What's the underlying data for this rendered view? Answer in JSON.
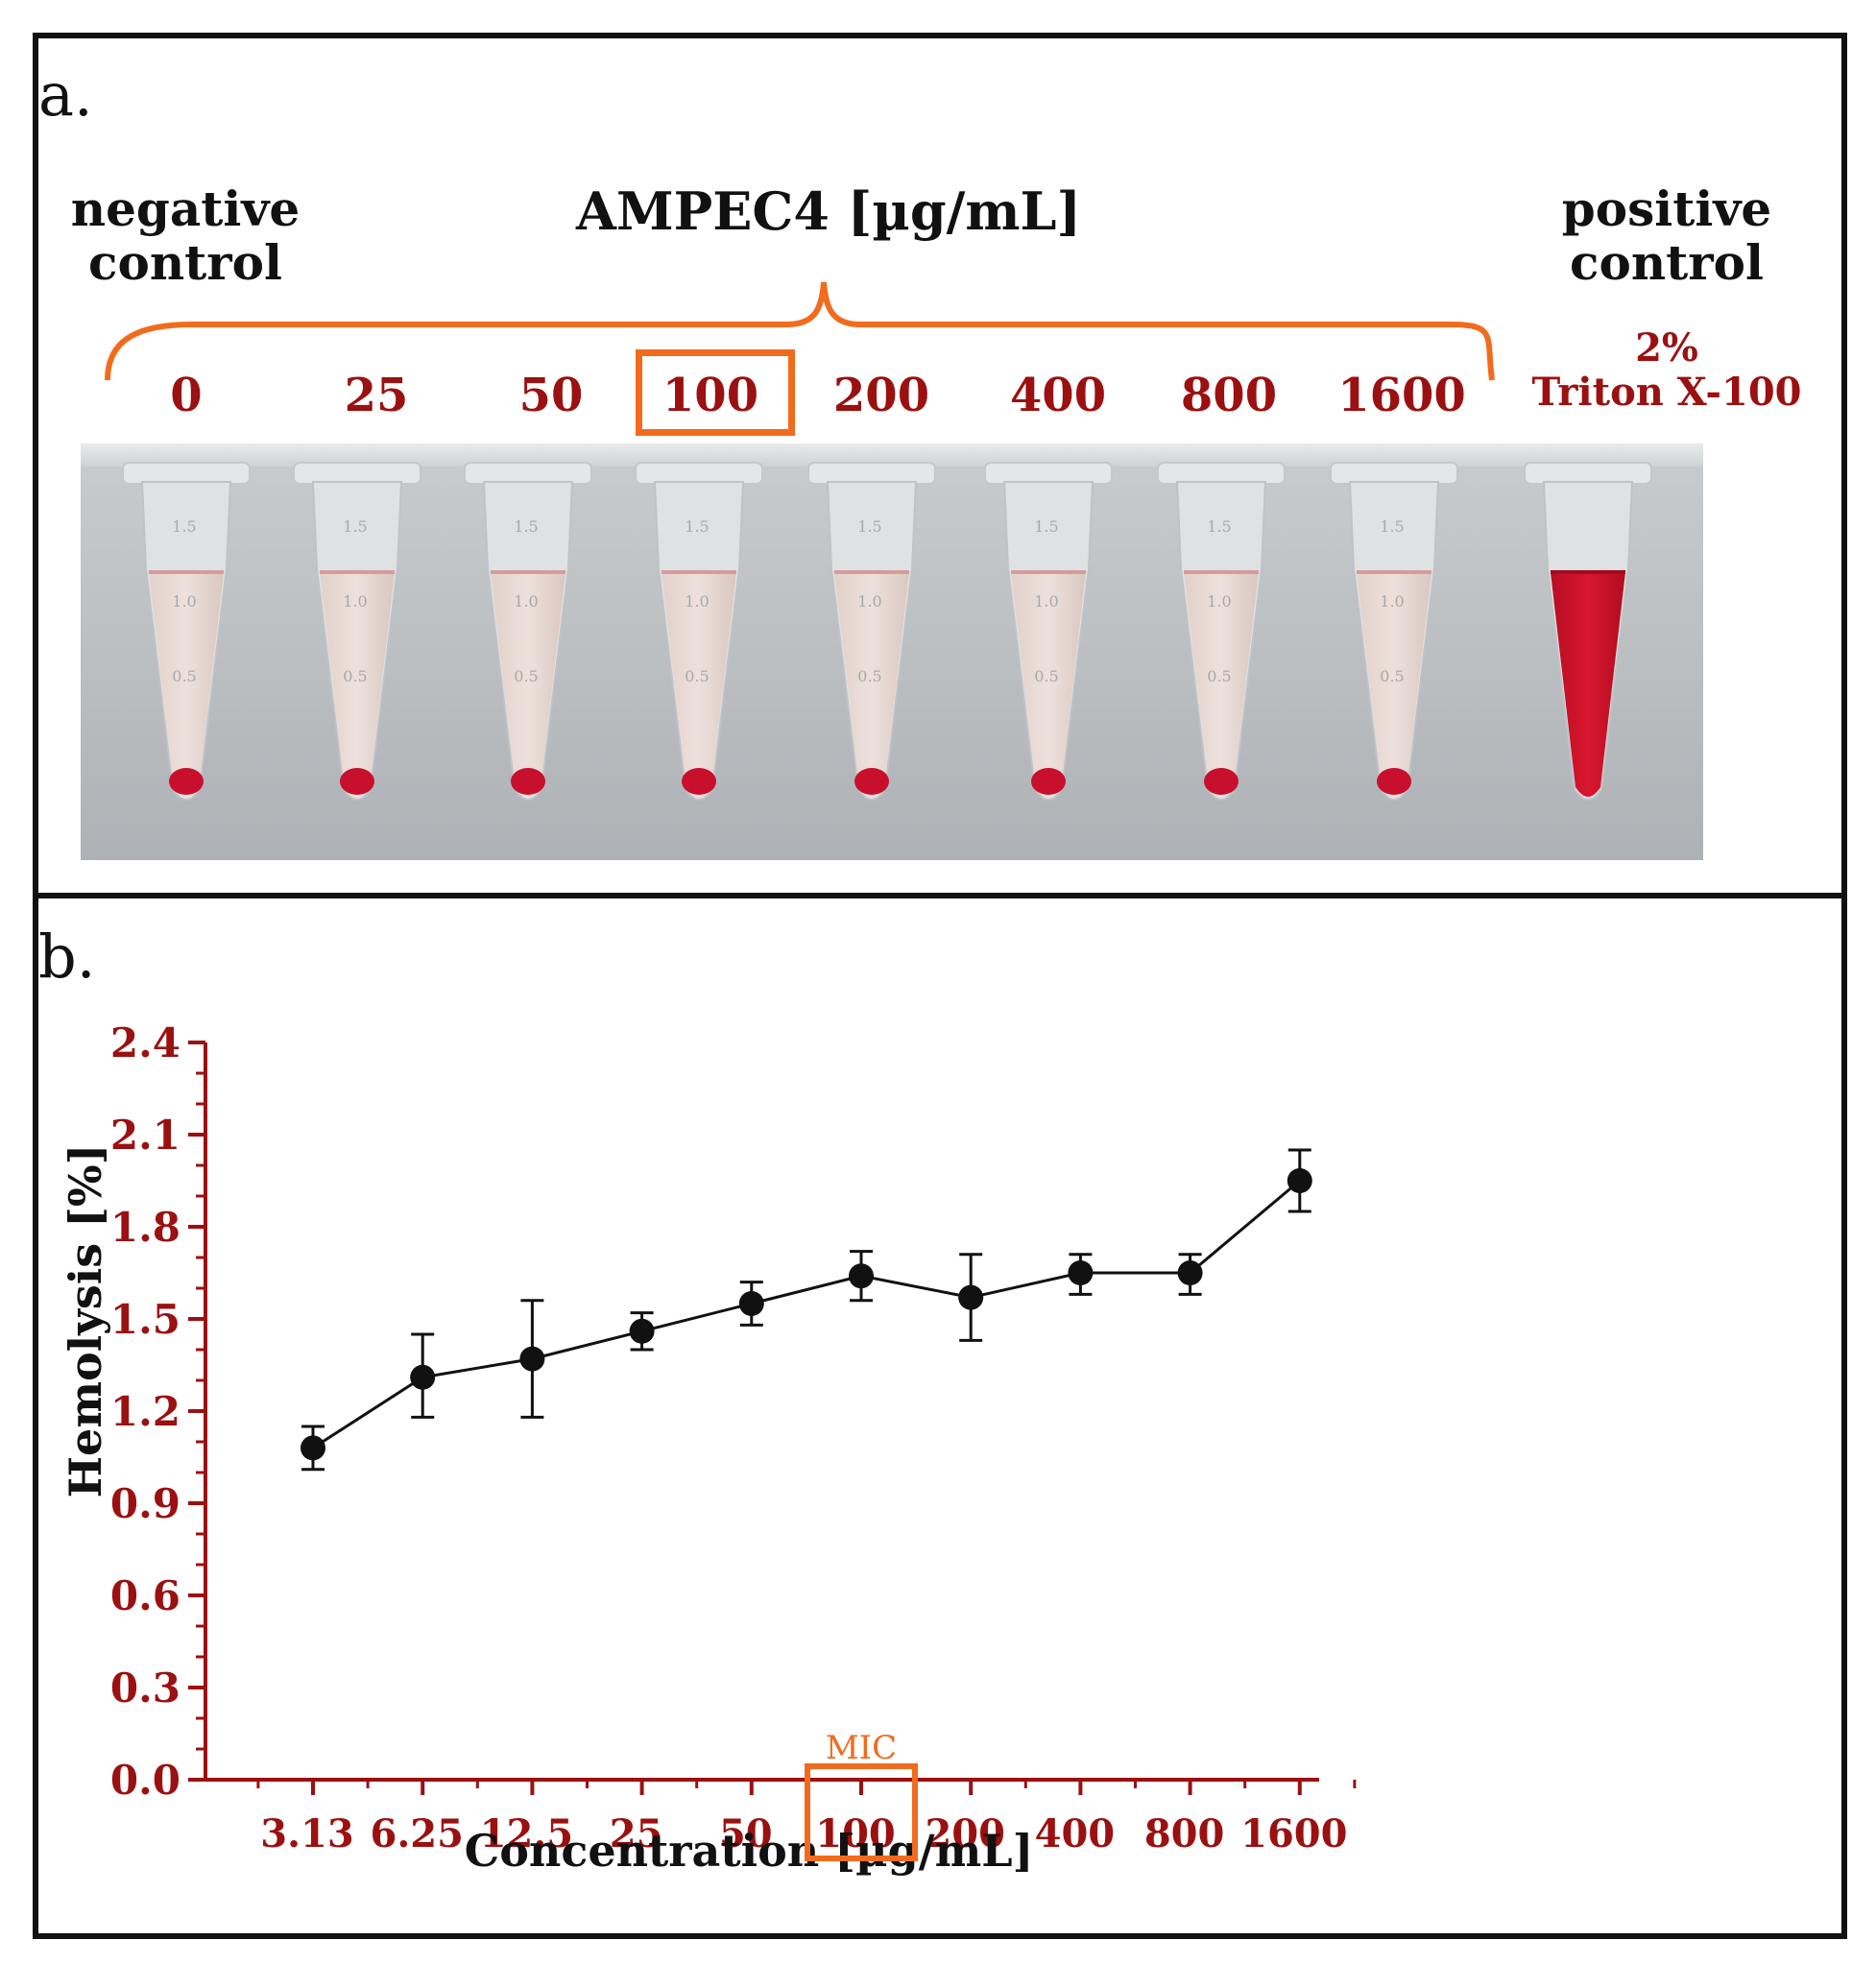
{
  "panel_a": {
    "label": "a.",
    "group_title": "AMPEC4 [µg/mL]",
    "negative_control": {
      "line1": "negative",
      "line2": "control"
    },
    "positive_control": {
      "line1": "positive",
      "line2": "control",
      "line3": "2%",
      "line4": "Triton X-100"
    },
    "concentrations": [
      "0",
      "25",
      "50",
      "100",
      "200",
      "400",
      "800",
      "1600"
    ],
    "highlighted": "100",
    "tube_marks": [
      "1.5",
      "1.0",
      "0.5"
    ]
  },
  "panel_b": {
    "label": "b."
  },
  "colors": {
    "dark_red": "#9b1010",
    "orange": "#f26b1d",
    "black": "#111111",
    "blood": "#c8102e",
    "background_photo": "#b9bdc1"
  },
  "chart_data": {
    "type": "line",
    "title": "",
    "xlabel": "Concentration [µg/mL]",
    "ylabel": "Hemolysis [%]",
    "categories": [
      "3.13",
      "6.25",
      "12.5",
      "25",
      "50",
      "100",
      "200",
      "400",
      "800",
      "1600"
    ],
    "values": [
      1.08,
      1.31,
      1.37,
      1.46,
      1.55,
      1.64,
      1.57,
      1.65,
      1.65,
      1.95
    ],
    "error_plus": [
      0.07,
      0.14,
      0.19,
      0.06,
      0.07,
      0.08,
      0.14,
      0.06,
      0.06,
      0.1
    ],
    "error_minus": [
      0.07,
      0.13,
      0.19,
      0.06,
      0.07,
      0.08,
      0.14,
      0.07,
      0.07,
      0.1
    ],
    "ylim": [
      0,
      2.4
    ],
    "yticks": [
      "0.0",
      "0.3",
      "0.6",
      "0.9",
      "1.2",
      "1.5",
      "1.8",
      "2.1",
      "2.4"
    ],
    "annotation": {
      "text": "MIC",
      "category": "100"
    },
    "grid": false,
    "legend": "none"
  }
}
